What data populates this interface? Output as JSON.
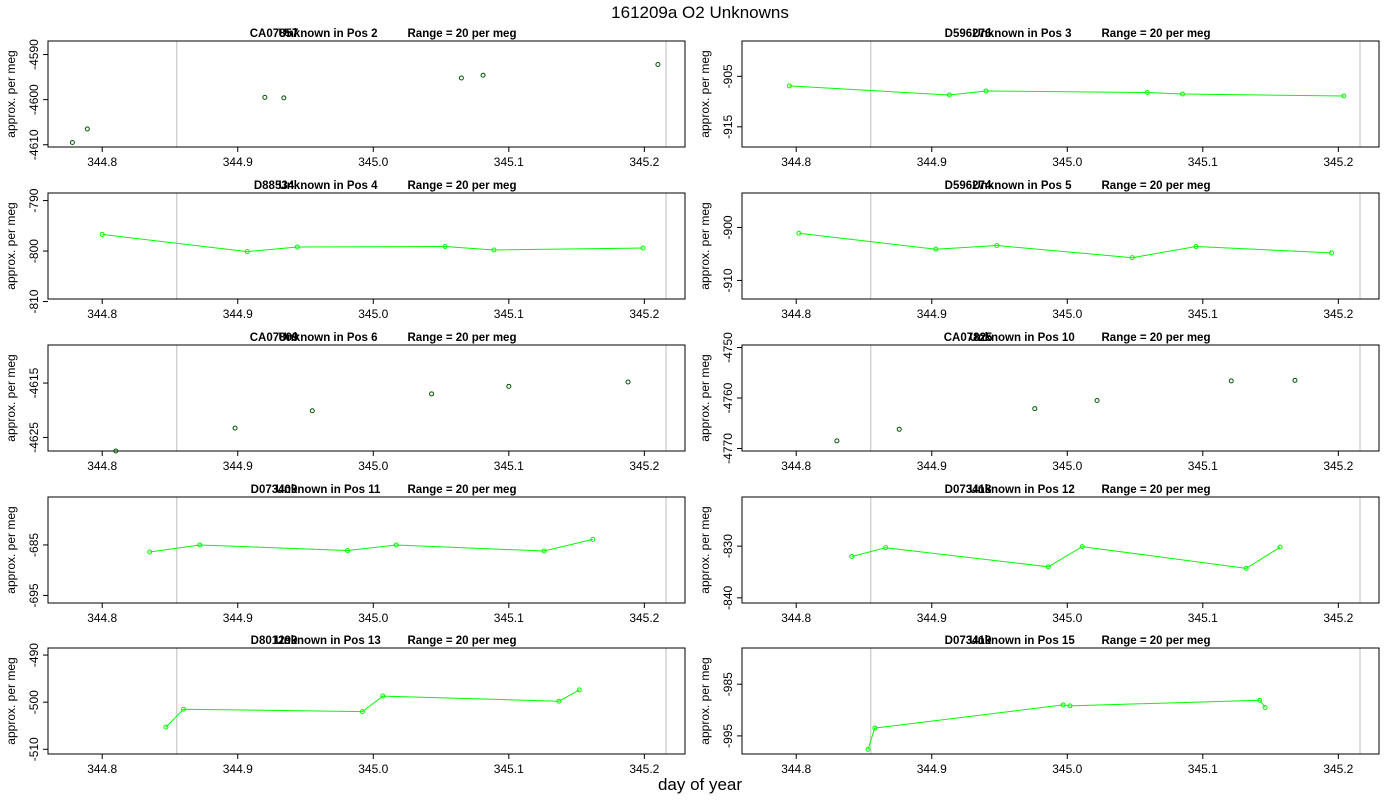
{
  "title": "161209a  O2 Unknowns",
  "xlabel": "day of year",
  "ylabel": "approx. per meg",
  "x_ticks": [
    "344.8",
    "344.9",
    "345.0",
    "345.1",
    "345.2"
  ],
  "xlim": [
    344.76,
    345.23
  ],
  "vlines": [
    344.855,
    345.216
  ],
  "colors": {
    "line": "#00ff00",
    "open_point_edge": "#005500",
    "reference_line": "#c8c8c8",
    "axis": "#000000"
  },
  "chart_data": [
    {
      "type": "scatter",
      "sample": "CA07857",
      "position_label": "Unknown in Pos 2",
      "range_label": "Range = 20 per meg",
      "style": "points",
      "ylim": [
        -4610.5,
        -4587
      ],
      "y_ticks": [
        -4590,
        -4600,
        -4610
      ],
      "x": [
        344.778,
        344.789,
        344.92,
        344.934,
        345.065,
        345.081,
        345.21
      ],
      "y": [
        -4609.5,
        -4606.5,
        -4599.5,
        -4599.6,
        -4595.2,
        -4594.6,
        -4592.2
      ]
    },
    {
      "type": "line",
      "sample": "D596276",
      "position_label": "Unknown in Pos 3",
      "range_label": "Range = 20 per meg",
      "style": "line",
      "ylim": [
        -919,
        -898
      ],
      "y_ticks": [
        -905,
        -915
      ],
      "x": [
        344.795,
        344.913,
        344.94,
        345.059,
        345.085,
        345.204
      ],
      "y": [
        -906.9,
        -908.7,
        -907.9,
        -908.2,
        -908.5,
        -908.9
      ]
    },
    {
      "type": "line",
      "sample": "D88534",
      "position_label": "Unknown in Pos 4",
      "range_label": "Range = 20 per meg",
      "style": "line",
      "ylim": [
        -809.5,
        -788.5
      ],
      "y_ticks": [
        -790,
        -800,
        -810
      ],
      "x": [
        344.8,
        344.907,
        344.944,
        345.053,
        345.089,
        345.199
      ],
      "y": [
        -796.7,
        -800.1,
        -799.2,
        -799.1,
        -799.8,
        -799.4
      ]
    },
    {
      "type": "line",
      "sample": "D596274",
      "position_label": "Unknown in Pos 5",
      "range_label": "Range = 20 per meg",
      "style": "line",
      "ylim": [
        -913.5,
        -893.5
      ],
      "y_ticks": [
        -900,
        -910
      ],
      "x": [
        344.802,
        344.903,
        344.948,
        345.048,
        345.095,
        345.195
      ],
      "y": [
        -901.1,
        -904.1,
        -903.4,
        -905.7,
        -903.6,
        -904.8
      ]
    },
    {
      "type": "scatter",
      "sample": "CA07809",
      "position_label": "Unknown in Pos 6",
      "range_label": "Range = 20 per meg",
      "style": "points",
      "ylim": [
        -4627.5,
        -4608
      ],
      "y_ticks": [
        -4615,
        -4625
      ],
      "x": [
        344.81,
        344.898,
        344.955,
        345.043,
        345.1,
        345.188
      ],
      "y": [
        -4627.5,
        -4623.3,
        -4620.1,
        -4617.0,
        -4615.6,
        -4614.8
      ]
    },
    {
      "type": "scatter",
      "sample": "CA07825",
      "position_label": "Unknown in Pos 10",
      "range_label": "Range = 20 per meg",
      "style": "points",
      "ylim": [
        -4770.5,
        -4749.5
      ],
      "y_ticks": [
        -4750,
        -4760,
        -4770
      ],
      "x": [
        344.83,
        344.876,
        344.976,
        345.022,
        345.121,
        345.168
      ],
      "y": [
        -4768.5,
        -4766.2,
        -4762.1,
        -4760.5,
        -4756.6,
        -4756.5
      ]
    },
    {
      "type": "line",
      "sample": "D073409",
      "position_label": "Unknown in Pos 11",
      "range_label": "Range = 20 per meg",
      "style": "line",
      "ylim": [
        -696.5,
        -675.5
      ],
      "y_ticks": [
        -685,
        -695
      ],
      "x": [
        344.835,
        344.872,
        344.981,
        345.017,
        345.126,
        345.162
      ],
      "y": [
        -686.4,
        -685.0,
        -686.1,
        -685.0,
        -686.2,
        -683.9
      ]
    },
    {
      "type": "line",
      "sample": "D073418",
      "position_label": "Unknown in Pos 12",
      "range_label": "Range = 20 per meg",
      "style": "line",
      "ylim": [
        -841,
        -820.5
      ],
      "y_ticks": [
        -830,
        -840
      ],
      "x": [
        344.841,
        344.866,
        344.986,
        345.011,
        345.132,
        345.157
      ],
      "y": [
        -832.0,
        -830.3,
        -834.0,
        -830.1,
        -834.3,
        -830.2
      ]
    },
    {
      "type": "line",
      "sample": "D801299",
      "position_label": "Unknown in Pos 13",
      "range_label": "Range = 20 per meg",
      "style": "line",
      "ylim": [
        -511,
        -488.5
      ],
      "y_ticks": [
        -490,
        -500,
        -510
      ],
      "x": [
        344.847,
        344.86,
        344.992,
        345.007,
        345.137,
        345.152
      ],
      "y": [
        -505.3,
        -501.5,
        -502.0,
        -498.7,
        -499.8,
        -497.4
      ]
    },
    {
      "type": "line",
      "sample": "D073419",
      "position_label": "Unknown in Pos 15",
      "range_label": "Range = 20 per meg",
      "style": "line",
      "ylim": [
        -998.5,
        -978
      ],
      "y_ticks": [
        -985,
        -995
      ],
      "x": [
        344.853,
        344.858,
        344.997,
        345.002,
        345.142,
        345.146
      ],
      "y": [
        -997.6,
        -993.5,
        -989.0,
        -989.2,
        -988.1,
        -989.5
      ]
    }
  ]
}
